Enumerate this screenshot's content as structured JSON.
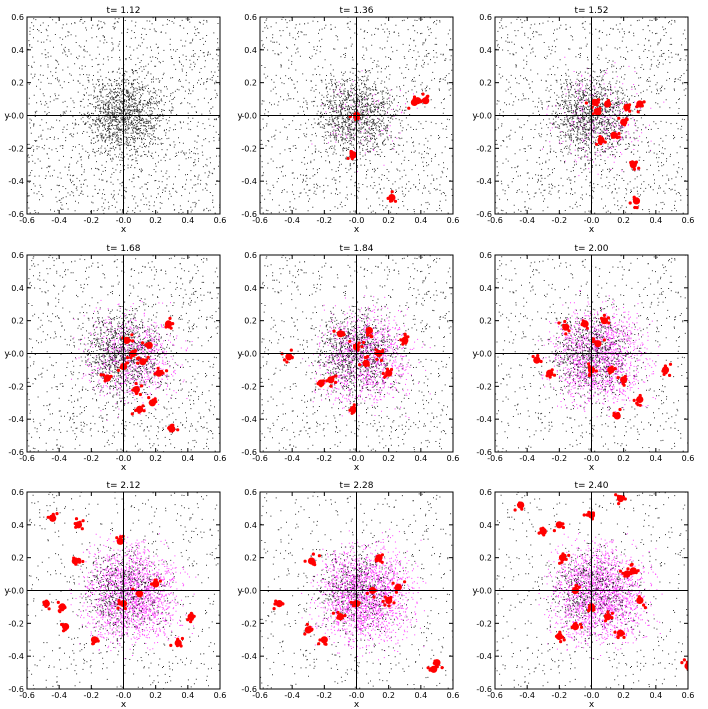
{
  "figure": {
    "xlabel": "x",
    "ylabel": "y",
    "colors": {
      "gas": "#000000",
      "stars": "#ff00ff",
      "sinks": "#ff0000",
      "axes": "#000000"
    }
  },
  "chart_data": {
    "type": "scatter",
    "xlim": [
      -0.6,
      0.6
    ],
    "ylim": [
      -0.6,
      0.6
    ],
    "xticks": [
      "-0.6",
      "-0.4",
      "-0.2",
      "-0.0",
      "0.2",
      "0.4",
      "0.6"
    ],
    "yticks": [
      "0.6",
      "0.4",
      "0.2",
      "-0.0",
      "-0.2",
      "-0.4",
      "-0.6"
    ],
    "crosshair_at": [
      0,
      0
    ],
    "grid": false,
    "panels": [
      {
        "title": "t= 1.12",
        "magenta_level": 0.0,
        "sinks": []
      },
      {
        "title": "t= 1.36",
        "magenta_level": 0.05,
        "sinks": [
          [
            0.0,
            0.0
          ],
          [
            -0.02,
            -0.24
          ],
          [
            0.22,
            -0.5
          ],
          [
            0.38,
            0.09
          ],
          [
            0.43,
            0.09
          ],
          [
            0.36,
            0.08
          ]
        ]
      },
      {
        "title": "t= 1.52",
        "magenta_level": 0.15,
        "sinks": [
          [
            0.02,
            0.08
          ],
          [
            0.1,
            0.07
          ],
          [
            0.3,
            0.07
          ],
          [
            0.22,
            0.05
          ],
          [
            0.06,
            -0.15
          ],
          [
            0.2,
            -0.04
          ],
          [
            0.14,
            -0.12
          ],
          [
            0.26,
            -0.3
          ],
          [
            0.28,
            -0.52
          ],
          [
            0.04,
            0.02
          ]
        ]
      },
      {
        "title": "t= 1.68",
        "magenta_level": 0.35,
        "sinks": [
          [
            -0.1,
            -0.15
          ],
          [
            0.02,
            0.08
          ],
          [
            0.06,
            0.0
          ],
          [
            0.12,
            -0.05
          ],
          [
            0.16,
            0.05
          ],
          [
            0.22,
            -0.12
          ],
          [
            0.08,
            -0.22
          ],
          [
            0.1,
            -0.34
          ],
          [
            0.28,
            0.18
          ],
          [
            0.3,
            -0.46
          ],
          [
            0.18,
            -0.3
          ],
          [
            0.0,
            -0.08
          ]
        ]
      },
      {
        "title": "t= 1.84",
        "magenta_level": 0.5,
        "sinks": [
          [
            -0.42,
            -0.02
          ],
          [
            -0.22,
            -0.18
          ],
          [
            -0.16,
            -0.16
          ],
          [
            -0.1,
            0.12
          ],
          [
            0.0,
            0.04
          ],
          [
            0.06,
            -0.06
          ],
          [
            0.14,
            0.0
          ],
          [
            0.2,
            -0.12
          ],
          [
            0.3,
            0.08
          ],
          [
            0.08,
            0.14
          ],
          [
            -0.02,
            -0.34
          ]
        ]
      },
      {
        "title": "t= 2.00",
        "magenta_level": 0.65,
        "sinks": [
          [
            -0.34,
            -0.04
          ],
          [
            -0.26,
            -0.12
          ],
          [
            -0.16,
            0.16
          ],
          [
            -0.04,
            0.18
          ],
          [
            0.04,
            0.06
          ],
          [
            0.0,
            -0.1
          ],
          [
            0.12,
            -0.1
          ],
          [
            0.2,
            -0.16
          ],
          [
            0.16,
            -0.38
          ],
          [
            0.3,
            -0.28
          ],
          [
            0.46,
            -0.1
          ],
          [
            0.08,
            0.2
          ]
        ]
      },
      {
        "title": "t= 2.12",
        "magenta_level": 0.8,
        "sinks": [
          [
            -0.44,
            0.44
          ],
          [
            -0.28,
            0.4
          ],
          [
            -0.02,
            0.3
          ],
          [
            -0.3,
            0.18
          ],
          [
            -0.48,
            -0.08
          ],
          [
            -0.36,
            -0.22
          ],
          [
            -0.38,
            -0.1
          ],
          [
            -0.18,
            -0.3
          ],
          [
            0.0,
            -0.08
          ],
          [
            0.1,
            -0.02
          ],
          [
            0.2,
            0.04
          ],
          [
            0.34,
            -0.32
          ],
          [
            0.42,
            -0.16
          ]
        ]
      },
      {
        "title": "t= 2.28",
        "magenta_level": 0.85,
        "sinks": [
          [
            -0.28,
            0.18
          ],
          [
            -0.48,
            -0.08
          ],
          [
            -0.3,
            -0.24
          ],
          [
            -0.2,
            -0.3
          ],
          [
            -0.1,
            -0.16
          ],
          [
            0.0,
            -0.08
          ],
          [
            0.1,
            0.0
          ],
          [
            0.2,
            -0.06
          ],
          [
            0.26,
            0.02
          ],
          [
            0.14,
            0.2
          ],
          [
            0.48,
            -0.48
          ],
          [
            0.5,
            -0.44
          ]
        ]
      },
      {
        "title": "t= 2.40",
        "magenta_level": 0.85,
        "sinks": [
          [
            -0.44,
            0.52
          ],
          [
            -0.3,
            0.36
          ],
          [
            -0.18,
            0.2
          ],
          [
            -0.2,
            0.4
          ],
          [
            0.0,
            0.46
          ],
          [
            0.18,
            0.56
          ],
          [
            0.22,
            0.1
          ],
          [
            0.26,
            0.12
          ],
          [
            0.0,
            -0.1
          ],
          [
            -0.1,
            -0.22
          ],
          [
            -0.2,
            -0.28
          ],
          [
            0.1,
            -0.16
          ],
          [
            0.18,
            -0.26
          ],
          [
            0.6,
            -0.46
          ],
          [
            -0.1,
            0.0
          ],
          [
            0.3,
            -0.06
          ]
        ]
      }
    ]
  }
}
